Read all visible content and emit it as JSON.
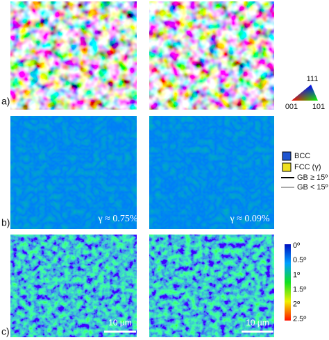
{
  "panels": {
    "a": {
      "label": "a)"
    },
    "b": {
      "label": "b)"
    },
    "c": {
      "label": "c)"
    }
  },
  "ipf_legend": {
    "top": "111",
    "left": "001",
    "right": "101"
  },
  "phase_legend": {
    "phases": [
      "BCC",
      "FCC (γ)"
    ],
    "boundaries": [
      "GB ≥ 15º",
      "GB < 15º"
    ]
  },
  "phase_fractions": [
    "γ ≈ 0.75%",
    "γ ≈ 0.09%"
  ],
  "kam_scale": [
    "0º",
    "0.5º",
    "1º",
    "1.5º",
    "2º",
    "2.5º"
  ],
  "scale_bars": [
    "10 µm",
    "10 µm"
  ]
}
